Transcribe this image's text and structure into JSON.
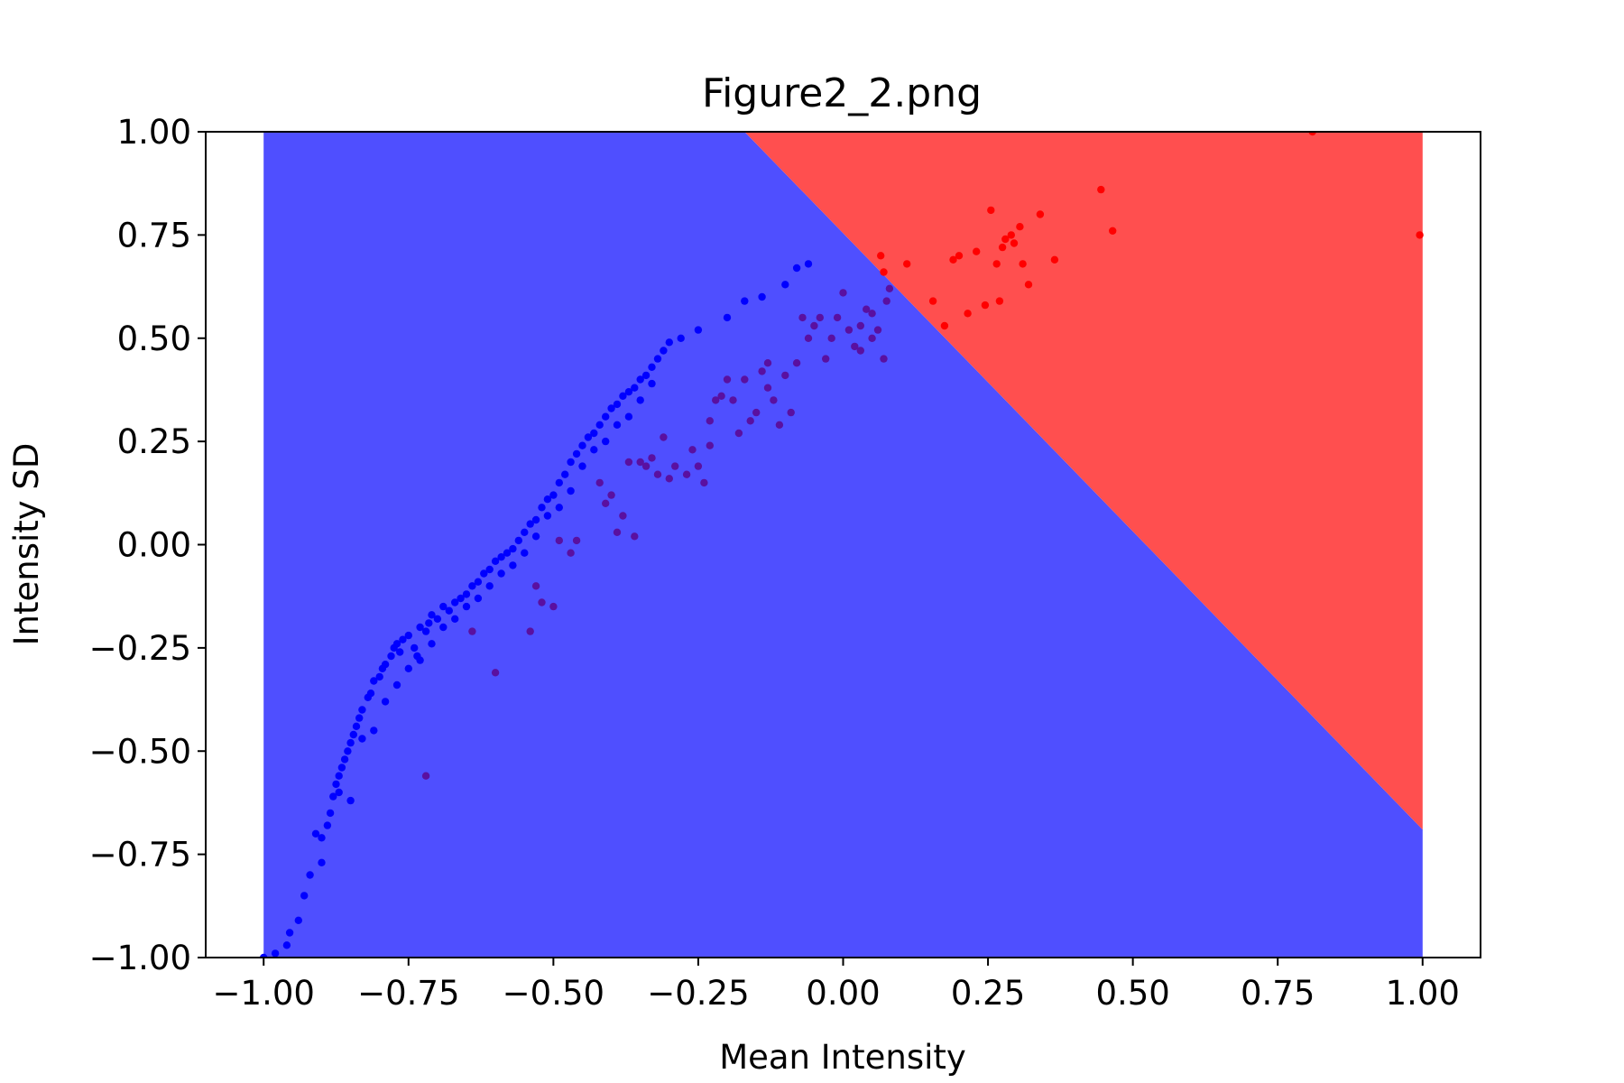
{
  "chart_data": {
    "type": "scatter",
    "title": "Figure2_2.png",
    "xlabel": "Mean Intensity",
    "ylabel": "Intensity SD",
    "xlim": [
      -1.1,
      1.1
    ],
    "ylim": [
      -1.0,
      1.0
    ],
    "x_ticks": [
      "−1.00",
      "−0.75",
      "−0.50",
      "−0.25",
      "0.00",
      "0.25",
      "0.50",
      "0.75",
      "1.00"
    ],
    "y_ticks": [
      "−1.00",
      "−0.75",
      "−0.50",
      "−0.25",
      "0.00",
      "0.25",
      "0.50",
      "0.75",
      "1.00"
    ],
    "grid": false,
    "background_regions": {
      "x_range": [
        -1.0,
        1.0
      ],
      "boundary_line": {
        "points": [
          [
            -0.17,
            1.0
          ],
          [
            1.0,
            -0.69
          ]
        ]
      },
      "below_color": "#4f4fff",
      "above_color": "#ff4f4f"
    },
    "series": [
      {
        "color": "#0000ff",
        "points": [
          [
            -1.0,
            -1.0
          ],
          [
            -0.98,
            -0.99
          ],
          [
            -0.96,
            -0.97
          ],
          [
            -0.955,
            -0.94
          ],
          [
            -0.94,
            -0.91
          ],
          [
            -0.93,
            -0.85
          ],
          [
            -0.92,
            -0.8
          ],
          [
            -0.91,
            -0.7
          ],
          [
            -0.9,
            -0.71
          ],
          [
            -0.89,
            -0.68
          ],
          [
            -0.885,
            -0.65
          ],
          [
            -0.88,
            -0.61
          ],
          [
            -0.875,
            -0.58
          ],
          [
            -0.87,
            -0.56
          ],
          [
            -0.865,
            -0.54
          ],
          [
            -0.86,
            -0.52
          ],
          [
            -0.855,
            -0.5
          ],
          [
            -0.85,
            -0.48
          ],
          [
            -0.845,
            -0.46
          ],
          [
            -0.84,
            -0.44
          ],
          [
            -0.835,
            -0.42
          ],
          [
            -0.83,
            -0.4
          ],
          [
            -0.82,
            -0.37
          ],
          [
            -0.815,
            -0.36
          ],
          [
            -0.81,
            -0.33
          ],
          [
            -0.8,
            -0.32
          ],
          [
            -0.795,
            -0.3
          ],
          [
            -0.79,
            -0.29
          ],
          [
            -0.78,
            -0.27
          ],
          [
            -0.775,
            -0.25
          ],
          [
            -0.77,
            -0.24
          ],
          [
            -0.765,
            -0.26
          ],
          [
            -0.76,
            -0.23
          ],
          [
            -0.75,
            -0.22
          ],
          [
            -0.74,
            -0.25
          ],
          [
            -0.735,
            -0.27
          ],
          [
            -0.73,
            -0.2
          ],
          [
            -0.72,
            -0.21
          ],
          [
            -0.715,
            -0.19
          ],
          [
            -0.71,
            -0.17
          ],
          [
            -0.7,
            -0.18
          ],
          [
            -0.69,
            -0.15
          ],
          [
            -0.68,
            -0.16
          ],
          [
            -0.67,
            -0.14
          ],
          [
            -0.66,
            -0.13
          ],
          [
            -0.65,
            -0.12
          ],
          [
            -0.64,
            -0.1
          ],
          [
            -0.63,
            -0.09
          ],
          [
            -0.62,
            -0.07
          ],
          [
            -0.61,
            -0.06
          ],
          [
            -0.6,
            -0.04
          ],
          [
            -0.59,
            -0.03
          ],
          [
            -0.58,
            -0.02
          ],
          [
            -0.57,
            -0.01
          ],
          [
            -0.56,
            0.01
          ],
          [
            -0.55,
            0.03
          ],
          [
            -0.54,
            0.05
          ],
          [
            -0.53,
            0.06
          ],
          [
            -0.52,
            0.09
          ],
          [
            -0.51,
            0.11
          ],
          [
            -0.5,
            0.12
          ],
          [
            -0.49,
            0.15
          ],
          [
            -0.48,
            0.17
          ],
          [
            -0.47,
            0.2
          ],
          [
            -0.46,
            0.22
          ],
          [
            -0.45,
            0.24
          ],
          [
            -0.44,
            0.26
          ],
          [
            -0.43,
            0.27
          ],
          [
            -0.42,
            0.29
          ],
          [
            -0.41,
            0.31
          ],
          [
            -0.4,
            0.33
          ],
          [
            -0.39,
            0.34
          ],
          [
            -0.38,
            0.36
          ],
          [
            -0.37,
            0.37
          ],
          [
            -0.36,
            0.38
          ],
          [
            -0.35,
            0.4
          ],
          [
            -0.34,
            0.41
          ],
          [
            -0.33,
            0.43
          ],
          [
            -0.32,
            0.45
          ],
          [
            -0.31,
            0.47
          ],
          [
            -0.3,
            0.49
          ],
          [
            -0.28,
            0.5
          ],
          [
            -0.25,
            0.52
          ],
          [
            -0.2,
            0.55
          ],
          [
            -0.17,
            0.59
          ],
          [
            -0.14,
            0.6
          ],
          [
            -0.1,
            0.63
          ],
          [
            -0.08,
            0.67
          ],
          [
            -0.06,
            0.68
          ],
          [
            -0.9,
            -0.77
          ],
          [
            -0.87,
            -0.6
          ],
          [
            -0.85,
            -0.62
          ],
          [
            -0.83,
            -0.47
          ],
          [
            -0.81,
            -0.45
          ],
          [
            -0.79,
            -0.38
          ],
          [
            -0.77,
            -0.34
          ],
          [
            -0.75,
            -0.3
          ],
          [
            -0.73,
            -0.28
          ],
          [
            -0.71,
            -0.24
          ],
          [
            -0.69,
            -0.2
          ],
          [
            -0.67,
            -0.18
          ],
          [
            -0.65,
            -0.15
          ],
          [
            -0.63,
            -0.13
          ],
          [
            -0.61,
            -0.1
          ],
          [
            -0.59,
            -0.07
          ],
          [
            -0.57,
            -0.05
          ],
          [
            -0.55,
            -0.02
          ],
          [
            -0.53,
            0.02
          ],
          [
            -0.51,
            0.07
          ],
          [
            -0.49,
            0.09
          ],
          [
            -0.47,
            0.13
          ],
          [
            -0.45,
            0.19
          ],
          [
            -0.43,
            0.23
          ],
          [
            -0.41,
            0.25
          ],
          [
            -0.39,
            0.29
          ],
          [
            -0.37,
            0.31
          ],
          [
            -0.35,
            0.35
          ],
          [
            -0.33,
            0.39
          ]
        ]
      },
      {
        "color": "#5a10a0",
        "points": [
          [
            -0.72,
            -0.56
          ],
          [
            -0.64,
            -0.21
          ],
          [
            -0.6,
            -0.31
          ],
          [
            -0.54,
            -0.21
          ],
          [
            -0.53,
            -0.1
          ],
          [
            -0.52,
            -0.14
          ],
          [
            -0.5,
            -0.15
          ],
          [
            -0.49,
            0.01
          ],
          [
            -0.47,
            -0.02
          ],
          [
            -0.46,
            0.01
          ],
          [
            -0.42,
            0.15
          ],
          [
            -0.41,
            0.1
          ],
          [
            -0.4,
            0.12
          ],
          [
            -0.39,
            0.03
          ],
          [
            -0.38,
            0.07
          ],
          [
            -0.37,
            0.2
          ],
          [
            -0.36,
            0.02
          ],
          [
            -0.35,
            0.2
          ],
          [
            -0.34,
            0.19
          ],
          [
            -0.33,
            0.21
          ],
          [
            -0.32,
            0.17
          ],
          [
            -0.31,
            0.26
          ],
          [
            -0.3,
            0.16
          ],
          [
            -0.29,
            0.19
          ],
          [
            -0.27,
            0.17
          ],
          [
            -0.26,
            0.23
          ],
          [
            -0.25,
            0.19
          ],
          [
            -0.24,
            0.15
          ],
          [
            -0.23,
            0.3
          ],
          [
            -0.22,
            0.35
          ],
          [
            -0.21,
            0.36
          ],
          [
            -0.2,
            0.4
          ],
          [
            -0.19,
            0.35
          ],
          [
            -0.17,
            0.4
          ],
          [
            -0.16,
            0.3
          ],
          [
            -0.15,
            0.32
          ],
          [
            -0.14,
            0.42
          ],
          [
            -0.13,
            0.44
          ],
          [
            -0.12,
            0.35
          ],
          [
            -0.11,
            0.29
          ],
          [
            -0.1,
            0.41
          ],
          [
            -0.09,
            0.32
          ],
          [
            -0.08,
            0.44
          ],
          [
            -0.07,
            0.55
          ],
          [
            -0.05,
            0.53
          ],
          [
            -0.04,
            0.55
          ],
          [
            -0.03,
            0.45
          ],
          [
            -0.02,
            0.5
          ],
          [
            -0.01,
            0.55
          ],
          [
            0.0,
            0.61
          ],
          [
            0.01,
            0.52
          ],
          [
            0.02,
            0.48
          ],
          [
            0.03,
            0.53
          ],
          [
            0.04,
            0.57
          ],
          [
            0.05,
            0.56
          ],
          [
            0.06,
            0.52
          ],
          [
            0.07,
            0.45
          ],
          [
            0.075,
            0.59
          ],
          [
            0.08,
            0.62
          ],
          [
            -0.23,
            0.24
          ],
          [
            -0.18,
            0.27
          ],
          [
            -0.13,
            0.38
          ],
          [
            -0.06,
            0.5
          ],
          [
            0.03,
            0.47
          ],
          [
            0.05,
            0.5
          ]
        ]
      },
      {
        "color": "#ff0000",
        "points": [
          [
            0.065,
            0.7
          ],
          [
            0.07,
            0.66
          ],
          [
            0.11,
            0.68
          ],
          [
            0.155,
            0.59
          ],
          [
            0.175,
            0.53
          ],
          [
            0.19,
            0.69
          ],
          [
            0.2,
            0.7
          ],
          [
            0.215,
            0.56
          ],
          [
            0.23,
            0.71
          ],
          [
            0.245,
            0.58
          ],
          [
            0.255,
            0.81
          ],
          [
            0.265,
            0.68
          ],
          [
            0.27,
            0.59
          ],
          [
            0.275,
            0.72
          ],
          [
            0.28,
            0.74
          ],
          [
            0.29,
            0.75
          ],
          [
            0.295,
            0.73
          ],
          [
            0.305,
            0.77
          ],
          [
            0.31,
            0.68
          ],
          [
            0.32,
            0.63
          ],
          [
            0.34,
            0.8
          ],
          [
            0.365,
            0.69
          ],
          [
            0.445,
            0.86
          ],
          [
            0.465,
            0.76
          ],
          [
            0.81,
            1.0
          ],
          [
            0.995,
            0.75
          ]
        ]
      }
    ]
  }
}
